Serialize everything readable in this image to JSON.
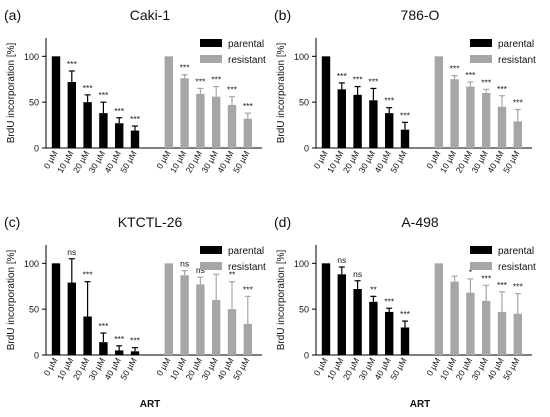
{
  "colors": {
    "parental": "#000000",
    "resistant": "#a6a6a6",
    "axis": "#000000"
  },
  "chart_data": [
    {
      "type": "bar",
      "panel_label": "(a)",
      "title": "Caki-1",
      "xlabel": "",
      "ylabel": "BrdU incorporation [%]",
      "ylim": [
        0,
        120
      ],
      "yticks": [
        0,
        50,
        100
      ],
      "categories": [
        "0 µM",
        "10 µM",
        "20 µM",
        "30 µM",
        "40 µM",
        "50 µM"
      ],
      "legend_position": "top-right",
      "series": [
        {
          "name": "parental",
          "values": [
            100,
            72,
            50,
            38,
            27,
            19
          ],
          "errors": [
            0,
            12,
            8,
            12,
            6,
            5
          ],
          "significance": [
            "",
            "***",
            "***",
            "***",
            "***",
            "***"
          ]
        },
        {
          "name": "resistant",
          "values": [
            100,
            76,
            59,
            56,
            47,
            32
          ],
          "errors": [
            0,
            4,
            6,
            11,
            9,
            6
          ],
          "significance": [
            "",
            "***",
            "***",
            "***",
            "***",
            "***"
          ]
        }
      ]
    },
    {
      "type": "bar",
      "panel_label": "(b)",
      "title": "786-O",
      "xlabel": "",
      "ylabel": "BrdU incorporation [%]",
      "ylim": [
        0,
        120
      ],
      "yticks": [
        0,
        50,
        100
      ],
      "categories": [
        "0 µM",
        "10 µM",
        "20 µM",
        "30 µM",
        "40 µM",
        "50 µM"
      ],
      "legend_position": "top-right",
      "series": [
        {
          "name": "parental",
          "values": [
            100,
            64,
            58,
            52,
            38,
            20
          ],
          "errors": [
            0,
            7,
            9,
            13,
            6,
            8
          ],
          "significance": [
            "",
            "***",
            "***",
            "***",
            "***",
            "***"
          ]
        },
        {
          "name": "resistant",
          "values": [
            100,
            75,
            67,
            60,
            45,
            29
          ],
          "errors": [
            0,
            4,
            5,
            4,
            12,
            13
          ],
          "significance": [
            "",
            "***",
            "***",
            "***",
            "***",
            "***"
          ]
        }
      ]
    },
    {
      "type": "bar",
      "panel_label": "(c)",
      "title": "KTCTL-26",
      "xlabel": "ART",
      "ylabel": "BrdU incorporation [%]",
      "ylim": [
        0,
        120
      ],
      "yticks": [
        0,
        50,
        100
      ],
      "categories": [
        "0 µM",
        "10 µM",
        "20 µM",
        "30 µM",
        "40 µM",
        "50 µM"
      ],
      "legend_position": "top-right",
      "series": [
        {
          "name": "parental",
          "values": [
            100,
            79,
            42,
            14,
            5,
            4
          ],
          "errors": [
            0,
            26,
            38,
            10,
            5,
            4
          ],
          "significance": [
            "",
            "ns",
            "***",
            "***",
            "***",
            "***"
          ]
        },
        {
          "name": "resistant",
          "values": [
            100,
            87,
            77,
            60,
            50,
            34
          ],
          "errors": [
            0,
            5,
            8,
            28,
            30,
            30
          ],
          "significance": [
            "",
            "ns",
            "ns",
            "*",
            "**",
            "***"
          ]
        }
      ]
    },
    {
      "type": "bar",
      "panel_label": "(d)",
      "title": "A-498",
      "xlabel": "ART",
      "ylabel": "BrdU incorporation [%]",
      "ylim": [
        0,
        120
      ],
      "yticks": [
        0,
        50,
        100
      ],
      "categories": [
        "0 µM",
        "10 µM",
        "20 µM",
        "30 µM",
        "40 µM",
        "50 µM"
      ],
      "legend_position": "top-right",
      "series": [
        {
          "name": "parental",
          "values": [
            100,
            88,
            72,
            58,
            47,
            30
          ],
          "errors": [
            0,
            8,
            9,
            6,
            4,
            7
          ],
          "significance": [
            "",
            "ns",
            "ns",
            "**",
            "***",
            "***"
          ]
        },
        {
          "name": "resistant",
          "values": [
            100,
            80,
            68,
            59,
            47,
            45
          ],
          "errors": [
            0,
            6,
            15,
            17,
            22,
            22
          ],
          "significance": [
            "",
            "",
            "*",
            "***",
            "***",
            "***"
          ]
        }
      ]
    }
  ]
}
